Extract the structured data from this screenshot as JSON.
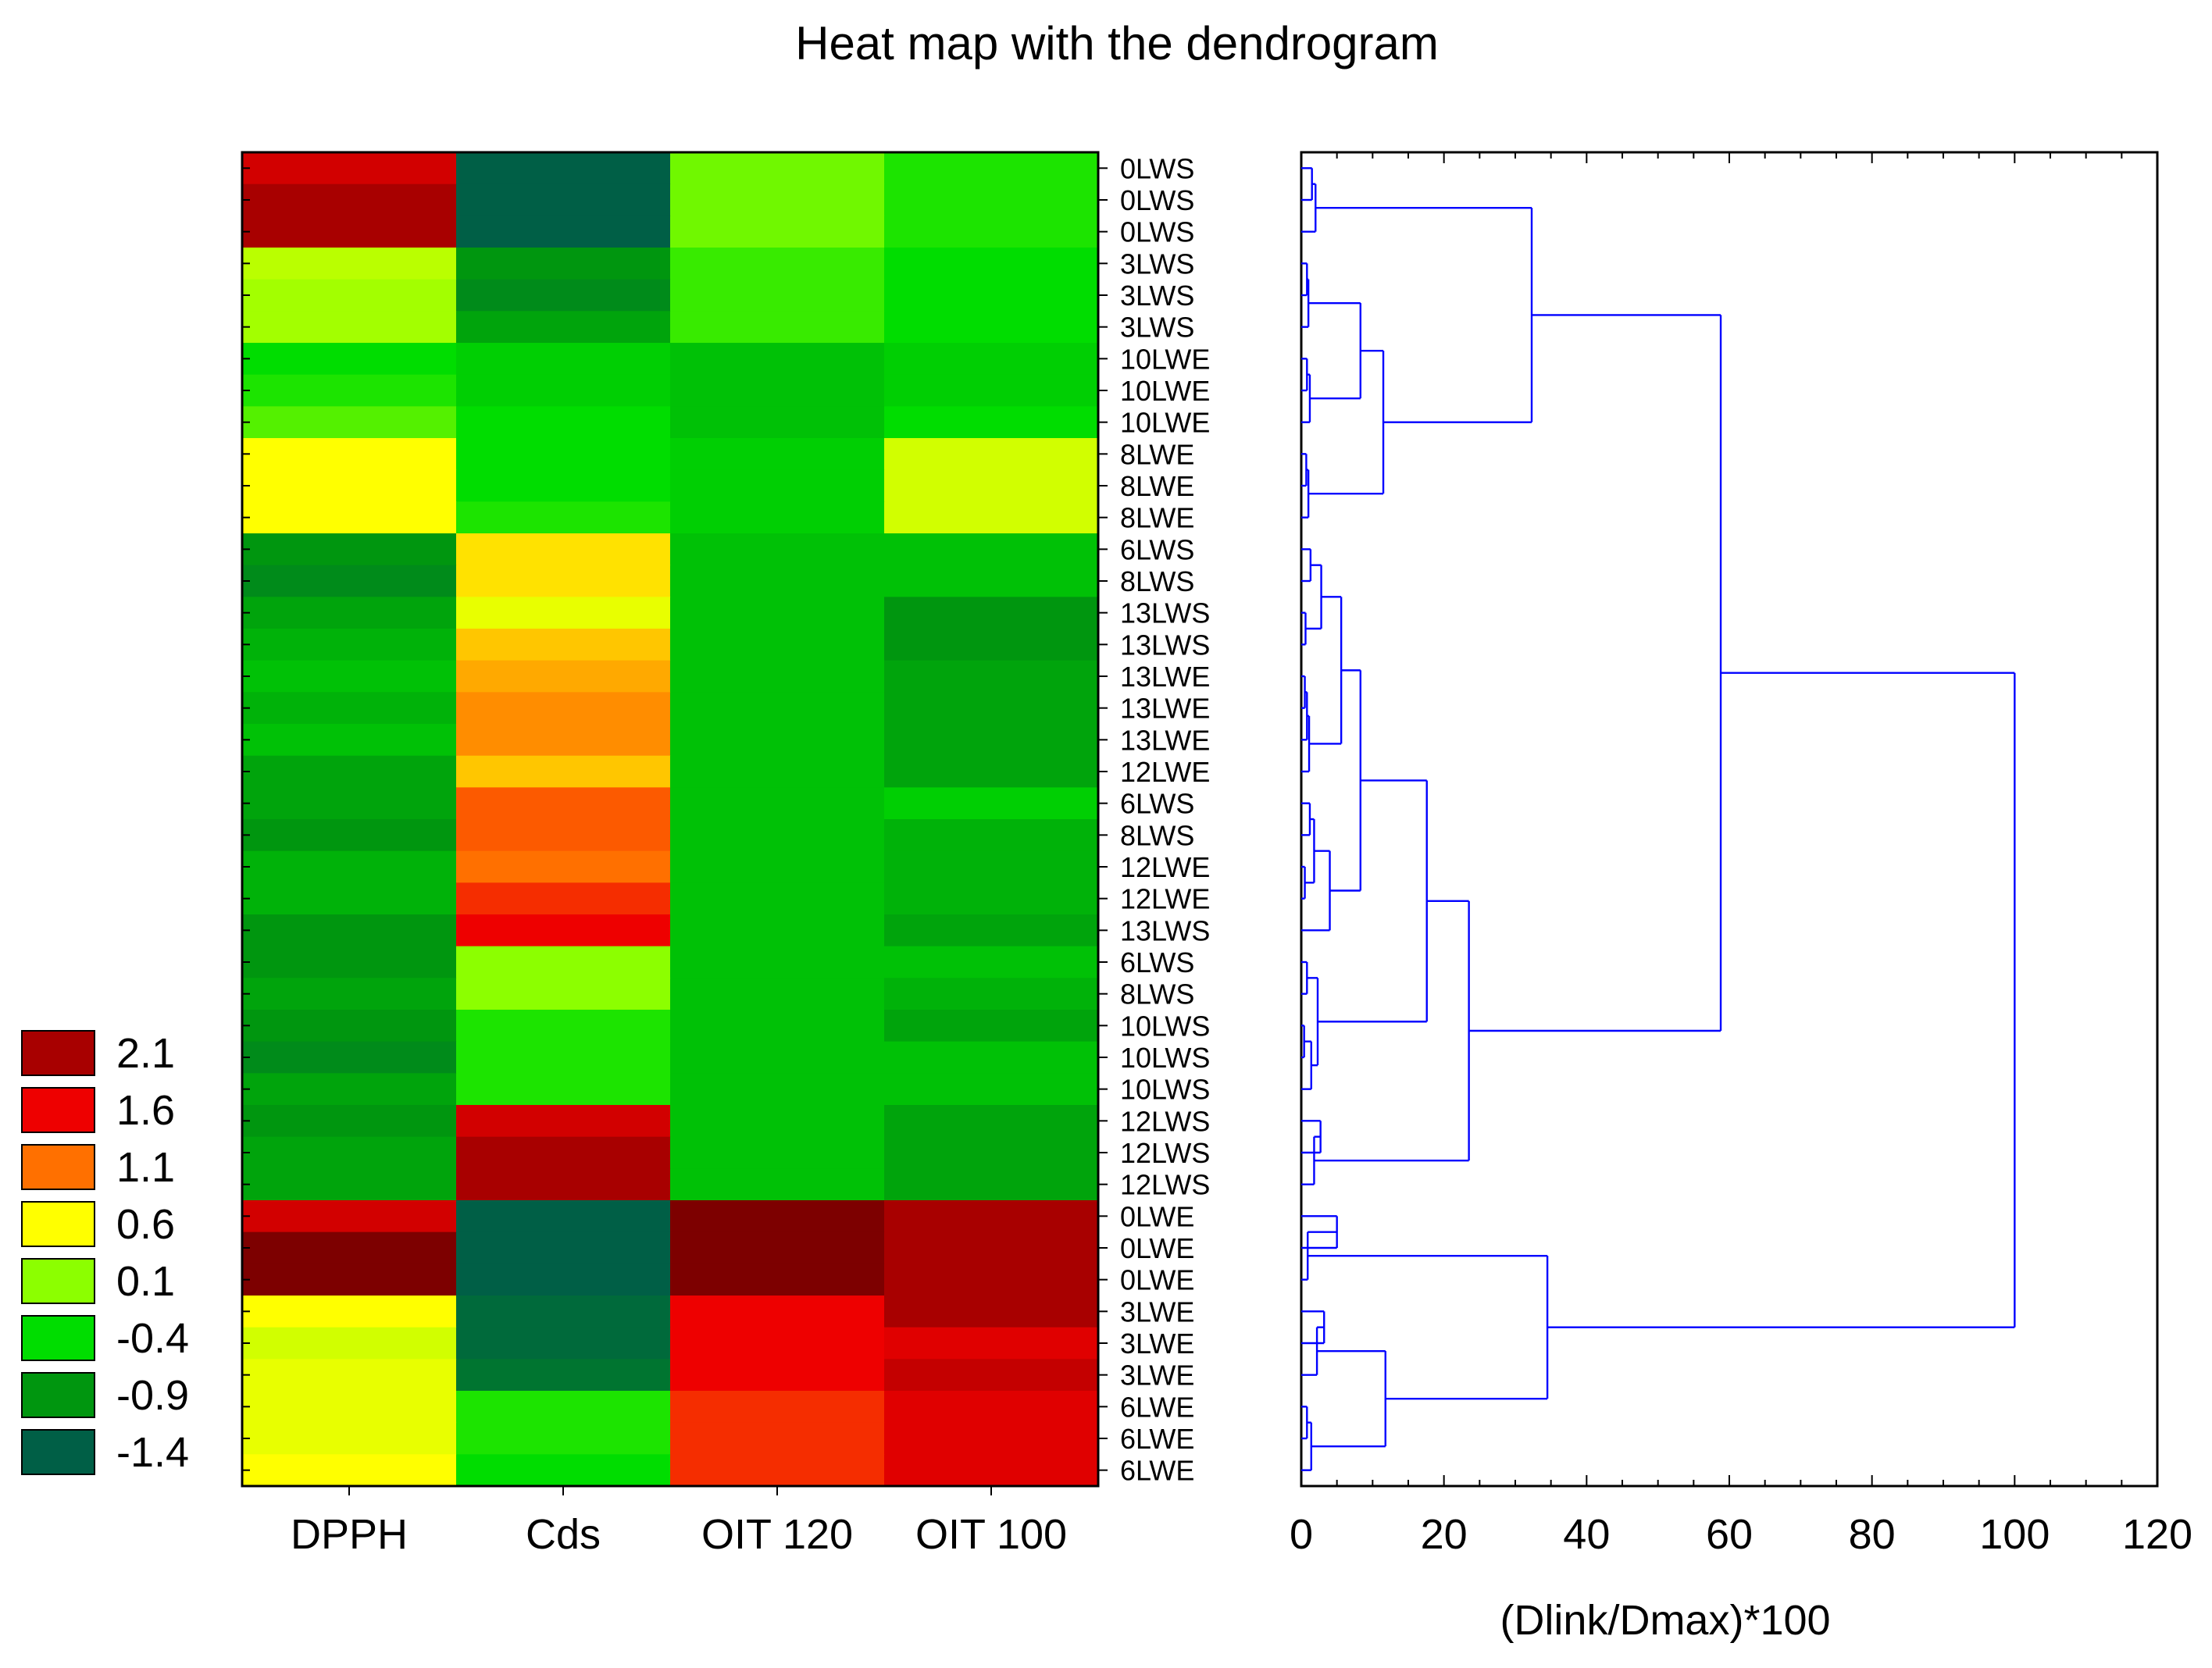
{
  "chart_data": {
    "type": "heatmap",
    "title": "Heat map with the dendrogram",
    "columns": [
      "DPPH",
      "Cds",
      "OIT 120",
      "OIT 100"
    ],
    "rows": [
      "0LWS",
      "0LWS",
      "0LWS",
      "3LWS",
      "3LWS",
      "3LWS",
      "10LWE",
      "10LWE",
      "10LWE",
      "8LWE",
      "8LWE",
      "8LWE",
      "6LWS",
      "8LWS",
      "13LWS",
      "13LWS",
      "13LWE",
      "13LWE",
      "13LWE",
      "12LWE",
      "6LWS",
      "8LWS",
      "12LWE",
      "12LWE",
      "13LWS",
      "6LWS",
      "8LWS",
      "10LWS",
      "10LWS",
      "10LWS",
      "12LWS",
      "12LWS",
      "12LWS",
      "0LWE",
      "0LWE",
      "0LWE",
      "3LWE",
      "3LWE",
      "3LWE",
      "6LWE",
      "6LWE",
      "6LWE"
    ],
    "values": [
      [
        1.8,
        -1.4,
        0.0,
        -0.3
      ],
      [
        2.1,
        -1.4,
        0.0,
        -0.3
      ],
      [
        2.1,
        -1.4,
        0.0,
        -0.3
      ],
      [
        0.3,
        -0.9,
        -0.2,
        -0.4
      ],
      [
        0.2,
        -1.0,
        -0.2,
        -0.4
      ],
      [
        0.2,
        -0.8,
        -0.2,
        -0.4
      ],
      [
        -0.4,
        -0.5,
        -0.6,
        -0.5
      ],
      [
        -0.3,
        -0.5,
        -0.6,
        -0.5
      ],
      [
        -0.1,
        -0.4,
        -0.6,
        -0.4
      ],
      [
        0.6,
        -0.4,
        -0.5,
        0.4
      ],
      [
        0.6,
        -0.4,
        -0.5,
        0.4
      ],
      [
        0.6,
        -0.3,
        -0.5,
        0.4
      ],
      [
        -0.9,
        0.7,
        -0.6,
        -0.6
      ],
      [
        -1.0,
        0.7,
        -0.6,
        -0.6
      ],
      [
        -0.8,
        0.5,
        -0.6,
        -0.9
      ],
      [
        -0.7,
        0.8,
        -0.6,
        -0.9
      ],
      [
        -0.6,
        0.9,
        -0.6,
        -0.8
      ],
      [
        -0.7,
        1.0,
        -0.6,
        -0.8
      ],
      [
        -0.6,
        1.0,
        -0.6,
        -0.8
      ],
      [
        -0.8,
        0.8,
        -0.6,
        -0.8
      ],
      [
        -0.8,
        1.2,
        -0.6,
        -0.5
      ],
      [
        -0.9,
        1.2,
        -0.6,
        -0.7
      ],
      [
        -0.7,
        1.1,
        -0.6,
        -0.7
      ],
      [
        -0.7,
        1.4,
        -0.6,
        -0.7
      ],
      [
        -0.9,
        1.6,
        -0.6,
        -0.8
      ],
      [
        -0.9,
        0.1,
        -0.6,
        -0.6
      ],
      [
        -0.8,
        0.1,
        -0.6,
        -0.7
      ],
      [
        -0.9,
        -0.3,
        -0.6,
        -0.8
      ],
      [
        -1.0,
        -0.3,
        -0.6,
        -0.6
      ],
      [
        -0.8,
        -0.3,
        -0.6,
        -0.6
      ],
      [
        -0.9,
        1.8,
        -0.6,
        -0.8
      ],
      [
        -0.8,
        2.1,
        -0.6,
        -0.8
      ],
      [
        -0.8,
        2.1,
        -0.6,
        -0.8
      ],
      [
        1.8,
        -1.4,
        2.3,
        2.1
      ],
      [
        2.3,
        -1.4,
        2.3,
        2.1
      ],
      [
        2.3,
        -1.4,
        2.3,
        2.1
      ],
      [
        0.6,
        -1.3,
        1.6,
        2.1
      ],
      [
        0.4,
        -1.3,
        1.6,
        1.7
      ],
      [
        0.5,
        -1.2,
        1.6,
        1.9
      ],
      [
        0.5,
        -0.3,
        1.4,
        1.7
      ],
      [
        0.5,
        -0.3,
        1.4,
        1.7
      ],
      [
        0.6,
        -0.4,
        1.4,
        1.7
      ]
    ],
    "legend": {
      "labels": [
        "2.1",
        "1.6",
        "1.1",
        "0.6",
        "0.1",
        "-0.4",
        "-0.9",
        "-1.4"
      ],
      "values": [
        2.1,
        1.6,
        1.1,
        0.6,
        0.1,
        -0.4,
        -0.9,
        -1.4
      ],
      "colors": [
        "#a80000",
        "#ee0000",
        "#ff7000",
        "#ffff00",
        "#8cff00",
        "#00dd00",
        "#00960f",
        "#005f46"
      ]
    },
    "dendrogram": {
      "xlabel": "(Dlink/Dmax)*100",
      "xlim": [
        0,
        120
      ],
      "xticks": [
        0,
        20,
        40,
        60,
        80,
        100,
        120
      ],
      "xtick_labels": [
        "0",
        "20",
        "40",
        "60",
        "80",
        "100",
        "120"
      ],
      "line_color": "#0000ff",
      "merges": [
        {
          "children": [
            "r0",
            "r1"
          ],
          "height": 1.5
        },
        {
          "children": [
            "m0",
            "r2"
          ],
          "height": 2.0
        },
        {
          "children": [
            "r3",
            "r4"
          ],
          "height": 0.8
        },
        {
          "children": [
            "m2",
            "r5"
          ],
          "height": 1.0
        },
        {
          "children": [
            "r6",
            "r7"
          ],
          "height": 0.8
        },
        {
          "children": [
            "m4",
            "r8"
          ],
          "height": 1.2
        },
        {
          "children": [
            "m3",
            "m5"
          ],
          "height": 8.3
        },
        {
          "children": [
            "r9",
            "r10"
          ],
          "height": 0.7
        },
        {
          "children": [
            "m7",
            "r11"
          ],
          "height": 1.0
        },
        {
          "children": [
            "m6",
            "m8"
          ],
          "height": 11.5
        },
        {
          "children": [
            "m1",
            "m9"
          ],
          "height": 32.3
        },
        {
          "children": [
            "r12",
            "r13"
          ],
          "height": 1.3
        },
        {
          "children": [
            "r14",
            "r15"
          ],
          "height": 0.6
        },
        {
          "children": [
            "m11",
            "m12"
          ],
          "height": 2.8
        },
        {
          "children": [
            "r16",
            "r17"
          ],
          "height": 0.5
        },
        {
          "children": [
            "m14",
            "r18"
          ],
          "height": 0.8
        },
        {
          "children": [
            "m15",
            "r19"
          ],
          "height": 1.1
        },
        {
          "children": [
            "m13",
            "m16"
          ],
          "height": 5.6
        },
        {
          "children": [
            "r20",
            "r21"
          ],
          "height": 1.2
        },
        {
          "children": [
            "r22",
            "r23"
          ],
          "height": 0.5
        },
        {
          "children": [
            "m18",
            "m19"
          ],
          "height": 1.8
        },
        {
          "children": [
            "m20",
            "r24"
          ],
          "height": 4.0
        },
        {
          "children": [
            "m17",
            "m21"
          ],
          "height": 8.3
        },
        {
          "children": [
            "r25",
            "r26"
          ],
          "height": 0.8
        },
        {
          "children": [
            "r27",
            "r28"
          ],
          "height": 0.4
        },
        {
          "children": [
            "m24",
            "r29"
          ],
          "height": 1.4
        },
        {
          "children": [
            "m23",
            "m25"
          ],
          "height": 2.3
        },
        {
          "children": [
            "m22",
            "m26"
          ],
          "height": 17.6
        },
        {
          "children": [
            "r30",
            "r31"
          ],
          "height": 2.7
        },
        {
          "children": [
            "m28",
            "r32"
          ],
          "height": 1.8
        },
        {
          "children": [
            "m27",
            "m29"
          ],
          "height": 23.5
        },
        {
          "children": [
            "m10",
            "m30"
          ],
          "height": 58.8
        },
        {
          "children": [
            "r33",
            "r34"
          ],
          "height": 5.0
        },
        {
          "children": [
            "m32",
            "r35"
          ],
          "height": 0.9
        },
        {
          "children": [
            "r36",
            "r37"
          ],
          "height": 3.2
        },
        {
          "children": [
            "m34",
            "r38"
          ],
          "height": 2.2
        },
        {
          "children": [
            "r39",
            "r40"
          ],
          "height": 0.8
        },
        {
          "children": [
            "m36",
            "r41"
          ],
          "height": 1.4
        },
        {
          "children": [
            "m35",
            "m37"
          ],
          "height": 11.8
        },
        {
          "children": [
            "m33",
            "m38"
          ],
          "height": 34.5
        },
        {
          "children": [
            "m31",
            "m39"
          ],
          "height": 100.0
        }
      ]
    }
  }
}
